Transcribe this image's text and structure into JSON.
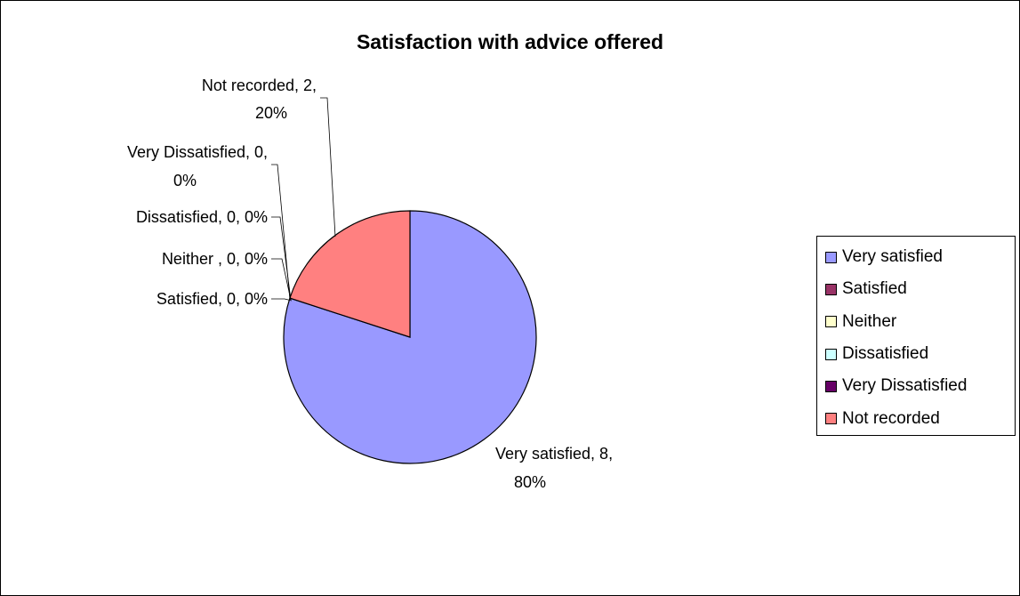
{
  "chart_data": {
    "type": "pie",
    "title": "Satisfaction with advice offered",
    "categories": [
      "Very satisfied",
      "Satisfied",
      "Neither",
      "Dissatisfied",
      "Very Dissatisfied",
      "Not recorded"
    ],
    "values": [
      8,
      0,
      0,
      0,
      0,
      2
    ],
    "percents": [
      80,
      0,
      0,
      0,
      0,
      20
    ],
    "colors": [
      "#9999ff",
      "#993366",
      "#ffffcc",
      "#ccffff",
      "#660066",
      "#ff8080"
    ],
    "legend_position": "right",
    "data_labels": [
      [
        "Very satisfied, 8,",
        "80%"
      ],
      [
        "Satisfied, 0, 0%"
      ],
      [
        "Neither , 0, 0%"
      ],
      [
        "Dissatisfied, 0, 0%"
      ],
      [
        "Very Dissatisfied, 0,",
        "0%"
      ],
      [
        "Not recorded, 2,",
        "20%"
      ]
    ]
  },
  "legend": {
    "items": [
      "Very satisfied",
      "Satisfied",
      "Neither",
      "Dissatisfied",
      "Very Dissatisfied",
      "Not recorded"
    ]
  }
}
